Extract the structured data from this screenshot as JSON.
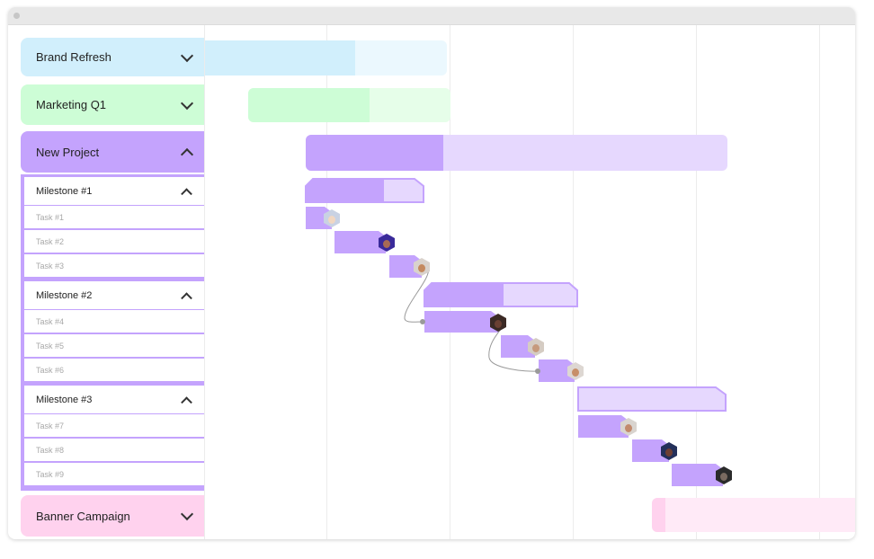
{
  "projects": [
    {
      "name": "Brand Refresh",
      "color": "#d1effc",
      "expanded": false
    },
    {
      "name": "Marketing Q1",
      "color": "#cdfdd6",
      "expanded": false
    },
    {
      "name": "New Project",
      "color": "#c4a3fd",
      "expanded": true
    },
    {
      "name": "Banner Campaign",
      "color": "#ffd2ee",
      "expanded": false
    }
  ],
  "milestones": [
    {
      "name": "Milestone #1",
      "tasks": [
        "Task #1",
        "Task #2",
        "Task #3"
      ]
    },
    {
      "name": "Milestone #2",
      "tasks": [
        "Task #4",
        "Task #5",
        "Task #6"
      ]
    },
    {
      "name": "Milestone #3",
      "tasks": [
        "Task #7",
        "Task #8",
        "Task #9"
      ]
    }
  ],
  "icons": {
    "expand": "chevron-down-icon",
    "collapse": "chevron-up-icon"
  }
}
